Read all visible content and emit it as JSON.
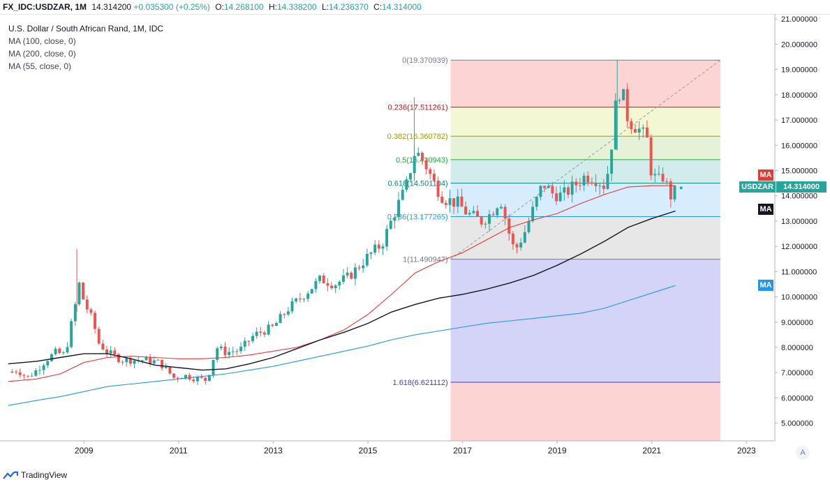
{
  "topbar": {
    "symbol": "FX_IDC:USDZAR, 1M",
    "last": "14.314200",
    "change": "+0.035300 (+0.25%)",
    "o_label": "O:",
    "o_value": "14.268100",
    "h_label": "H:",
    "h_value": "14.338200",
    "l_label": "L:",
    "l_value": "14.236370",
    "c_label": "C:",
    "c_value": "14.314000"
  },
  "legend": {
    "title": "U.S. Dollar / South African Rand, 1M, IDC",
    "ma1": "MA (100, close, 0)",
    "ma2": "MA (200, close, 0)",
    "ma3": "MA (55, close, 0)"
  },
  "badges": {
    "ma_red": "MA",
    "ma_black": "MA",
    "ma_blue": "MA",
    "symbol": "USDZAR",
    "price": "14.314000"
  },
  "brand": {
    "name": "TradingView"
  },
  "auto_button": "A",
  "colors": {
    "up": "#26a69a",
    "down": "#ef5350",
    "ma55": "#e53935",
    "ma100": "#131722",
    "ma200": "#2196f3"
  },
  "chart_data": {
    "type": "candlestick",
    "title": "U.S. Dollar / South African Rand, 1M, IDC",
    "xlabel": "",
    "ylabel": "",
    "ylim": [
      4.3,
      21.2
    ],
    "grid": false,
    "y_ticks": [
      "5.000000",
      "6.000000",
      "7.000000",
      "8.000000",
      "9.000000",
      "10.000000",
      "11.000000",
      "12.000000",
      "13.000000",
      "14.000000",
      "15.000000",
      "16.000000",
      "17.000000",
      "18.000000",
      "19.000000",
      "20.000000",
      "21.000000"
    ],
    "x_ticks": [
      "2009",
      "2011",
      "2013",
      "2015",
      "2017",
      "2019",
      "2021",
      "2023"
    ],
    "last_price": 14.314,
    "fib_levels": [
      {
        "label": "0(19.370939)",
        "value": 19.370939,
        "color": "#787b86"
      },
      {
        "label": "0.236(17.511261)",
        "value": 17.511261,
        "color": "#b71c1c"
      },
      {
        "label": "0.382(16.360782)",
        "value": 16.360782,
        "color": "#9c9c0f"
      },
      {
        "label": "0.5(15.430943)",
        "value": 15.430943,
        "color": "#22ab3b"
      },
      {
        "label": "0.618(14.501104)",
        "value": 14.501104,
        "color": "#00897b"
      },
      {
        "label": "0.786(13.177265)",
        "value": 13.177265,
        "color": "#2196f3"
      },
      {
        "label": "1(11.490947)",
        "value": 11.490947,
        "color": "#787b86"
      },
      {
        "label": "1.618(6.621112)",
        "value": 6.621112,
        "color": "#3f3fc0"
      }
    ],
    "ohlc_anchors": [
      [
        2007.4,
        7.0
      ],
      [
        2007.6,
        7.1
      ],
      [
        2007.8,
        6.8
      ],
      [
        2008.0,
        7.1
      ],
      [
        2008.2,
        7.5
      ],
      [
        2008.4,
        7.8
      ],
      [
        2008.6,
        7.7
      ],
      [
        2008.8,
        9.5
      ],
      [
        2008.9,
        10.5
      ],
      [
        2009.0,
        9.8
      ],
      [
        2009.2,
        9.0
      ],
      [
        2009.3,
        8.2
      ],
      [
        2009.5,
        7.8
      ],
      [
        2009.8,
        7.5
      ],
      [
        2010.0,
        7.5
      ],
      [
        2010.3,
        7.5
      ],
      [
        2010.6,
        7.4
      ],
      [
        2010.9,
        6.8
      ],
      [
        2011.1,
        6.9
      ],
      [
        2011.3,
        6.8
      ],
      [
        2011.6,
        6.7
      ],
      [
        2011.8,
        8.0
      ],
      [
        2012.0,
        7.8
      ],
      [
        2012.3,
        7.9
      ],
      [
        2012.6,
        8.5
      ],
      [
        2013.0,
        8.8
      ],
      [
        2013.3,
        9.5
      ],
      [
        2013.6,
        10.0
      ],
      [
        2014.0,
        10.7
      ],
      [
        2014.3,
        10.5
      ],
      [
        2014.6,
        10.8
      ],
      [
        2015.0,
        11.6
      ],
      [
        2015.3,
        12.1
      ],
      [
        2015.6,
        13.5
      ],
      [
        2015.8,
        14.3
      ],
      [
        2016.0,
        15.8
      ],
      [
        2016.2,
        15.3
      ],
      [
        2016.4,
        14.5
      ],
      [
        2016.6,
        13.9
      ],
      [
        2016.9,
        13.7
      ],
      [
        2017.1,
        13.3
      ],
      [
        2017.4,
        13.0
      ],
      [
        2017.6,
        13.3
      ],
      [
        2017.8,
        13.9
      ],
      [
        2018.0,
        12.4
      ],
      [
        2018.1,
        11.8
      ],
      [
        2018.3,
        12.5
      ],
      [
        2018.5,
        13.5
      ],
      [
        2018.7,
        14.5
      ],
      [
        2018.9,
        14.1
      ],
      [
        2019.1,
        14.0
      ],
      [
        2019.3,
        14.3
      ],
      [
        2019.6,
        14.8
      ],
      [
        2019.8,
        14.7
      ],
      [
        2020.0,
        14.4
      ],
      [
        2020.1,
        15.2
      ],
      [
        2020.25,
        17.8
      ],
      [
        2020.35,
        18.3
      ],
      [
        2020.5,
        17.0
      ],
      [
        2020.7,
        16.7
      ],
      [
        2020.9,
        16.2
      ],
      [
        2021.0,
        14.8
      ],
      [
        2021.15,
        14.6
      ],
      [
        2021.25,
        14.8
      ],
      [
        2021.35,
        14.2
      ],
      [
        2021.45,
        13.8
      ],
      [
        2021.5,
        14.314
      ]
    ],
    "ma_series": [
      {
        "name": "MA (55, close, 0)",
        "color": "#e53935",
        "points": [
          [
            2007.4,
            6.65
          ],
          [
            2008.0,
            6.75
          ],
          [
            2008.5,
            6.95
          ],
          [
            2009.0,
            7.4
          ],
          [
            2009.5,
            7.6
          ],
          [
            2010.0,
            7.65
          ],
          [
            2010.5,
            7.6
          ],
          [
            2011.0,
            7.55
          ],
          [
            2011.5,
            7.55
          ],
          [
            2012.0,
            7.6
          ],
          [
            2012.5,
            7.7
          ],
          [
            2013.0,
            7.85
          ],
          [
            2013.5,
            8.0
          ],
          [
            2014.0,
            8.3
          ],
          [
            2014.5,
            8.7
          ],
          [
            2015.0,
            9.3
          ],
          [
            2015.5,
            10.1
          ],
          [
            2016.0,
            10.95
          ],
          [
            2016.5,
            11.4
          ],
          [
            2017.0,
            11.75
          ],
          [
            2017.5,
            12.25
          ],
          [
            2018.0,
            12.75
          ],
          [
            2018.5,
            13.05
          ],
          [
            2019.0,
            13.3
          ],
          [
            2019.5,
            13.7
          ],
          [
            2020.0,
            14.05
          ],
          [
            2020.5,
            14.35
          ],
          [
            2021.0,
            14.4
          ],
          [
            2021.5,
            14.4
          ]
        ]
      },
      {
        "name": "MA (100, close, 0)",
        "color": "#131722",
        "points": [
          [
            2007.4,
            7.35
          ],
          [
            2008.0,
            7.45
          ],
          [
            2008.5,
            7.6
          ],
          [
            2009.0,
            7.75
          ],
          [
            2009.5,
            7.75
          ],
          [
            2010.0,
            7.55
          ],
          [
            2010.5,
            7.3
          ],
          [
            2011.0,
            7.2
          ],
          [
            2011.5,
            7.1
          ],
          [
            2012.0,
            7.15
          ],
          [
            2012.5,
            7.35
          ],
          [
            2013.0,
            7.6
          ],
          [
            2013.5,
            7.95
          ],
          [
            2014.0,
            8.3
          ],
          [
            2014.5,
            8.6
          ],
          [
            2015.0,
            8.95
          ],
          [
            2015.5,
            9.4
          ],
          [
            2016.0,
            9.7
          ],
          [
            2016.5,
            9.95
          ],
          [
            2017.0,
            10.1
          ],
          [
            2017.5,
            10.3
          ],
          [
            2018.0,
            10.55
          ],
          [
            2018.5,
            10.85
          ],
          [
            2019.0,
            11.25
          ],
          [
            2019.5,
            11.7
          ],
          [
            2020.0,
            12.2
          ],
          [
            2020.5,
            12.75
          ],
          [
            2021.0,
            13.1
          ],
          [
            2021.5,
            13.4
          ]
        ]
      },
      {
        "name": "MA (200, close, 0)",
        "color": "#2196f3",
        "points": [
          [
            2007.4,
            5.7
          ],
          [
            2008.0,
            5.9
          ],
          [
            2008.5,
            6.05
          ],
          [
            2009.0,
            6.25
          ],
          [
            2009.5,
            6.45
          ],
          [
            2010.0,
            6.55
          ],
          [
            2010.5,
            6.65
          ],
          [
            2011.0,
            6.75
          ],
          [
            2011.5,
            6.85
          ],
          [
            2012.0,
            6.95
          ],
          [
            2012.5,
            7.1
          ],
          [
            2013.0,
            7.25
          ],
          [
            2013.5,
            7.45
          ],
          [
            2014.0,
            7.65
          ],
          [
            2014.5,
            7.85
          ],
          [
            2015.0,
            8.05
          ],
          [
            2015.5,
            8.3
          ],
          [
            2016.0,
            8.5
          ],
          [
            2016.5,
            8.65
          ],
          [
            2017.0,
            8.8
          ],
          [
            2017.5,
            8.95
          ],
          [
            2018.0,
            9.05
          ],
          [
            2018.5,
            9.15
          ],
          [
            2019.0,
            9.25
          ],
          [
            2019.5,
            9.35
          ],
          [
            2020.0,
            9.55
          ],
          [
            2020.5,
            9.85
          ],
          [
            2021.0,
            10.15
          ],
          [
            2021.5,
            10.45
          ]
        ]
      }
    ]
  }
}
